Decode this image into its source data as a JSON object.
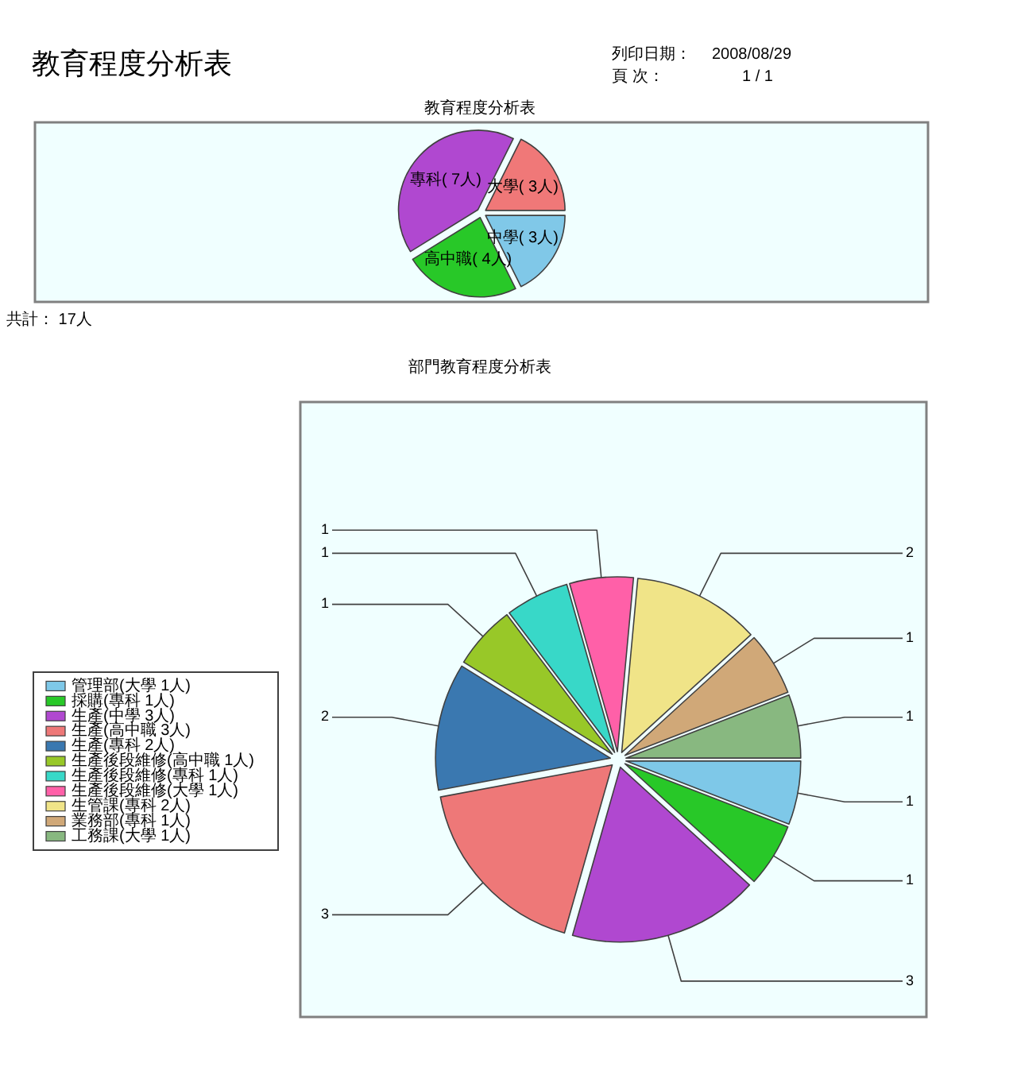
{
  "chart_data": [
    {
      "type": "pie",
      "title": "教育程度分析表",
      "categories": [
        "中學( 3人)",
        "高中職( 4人)",
        "專科( 7人)",
        "大學( 3人)"
      ],
      "values": [
        3,
        4,
        7,
        3
      ],
      "colors": [
        "#80c8e8",
        "#28c828",
        "#b048d0",
        "#f07878"
      ],
      "annotations": [
        "教育程度分析表",
        "列印日期：",
        "2008/08/29",
        "頁 次：",
        "1 / 1",
        "共計： 17人"
      ]
    },
    {
      "type": "pie",
      "title": "部門教育程度分析表",
      "categories": [
        "管理部(大學 1人)",
        "採購(專科 1人)",
        "生產(中學 3人)",
        "生產(高中職 3人)",
        "生產(專科 2人)",
        "生產後段維修(高中職 1人)",
        "生產後段維修(專科 1人)",
        "生產後段維修(大學 1人)",
        "生管課(專科 2人)",
        "業務部(專科 1人)",
        "工務課(大學 1人)"
      ],
      "values": [
        1,
        1,
        3,
        3,
        2,
        1,
        1,
        1,
        2,
        1,
        1
      ],
      "colors": [
        "#7ec8e8",
        "#28c828",
        "#b048d0",
        "#ee7878",
        "#3a78b0",
        "#98c828",
        "#38d8c8",
        "#ff60a8",
        "#f0e488",
        "#d0a878",
        "#88b880"
      ],
      "legend": "left",
      "data_labels": true
    }
  ]
}
